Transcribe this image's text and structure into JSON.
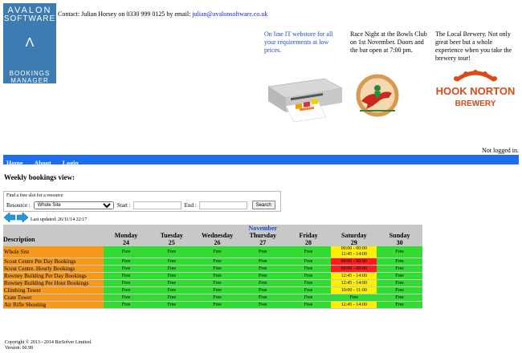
{
  "logo": {
    "line1": "AVALON",
    "line2": "SOFTWARE",
    "line3": "BOOKINGS",
    "line4": "MANAGER",
    "mark": "Λ"
  },
  "contact": {
    "prefix": "Contact: Julian Horsey on 0330 999 0125 by email: ",
    "email": "julian@avalonsoftware.co.uk"
  },
  "ads": {
    "ad1": "On line IT webstore for all your requirements at low prices.",
    "ad2": "Race Night at the Bowls Club on 1st November. Doors and the bar open at 7:00 pm.",
    "ad3": "The Local Brewery. Not only great beer but a whole experience when you take the brewery tour!",
    "brewery_line1": "HOOK NORTON",
    "brewery_line2": "BREWERY"
  },
  "status": {
    "login": "Not logged in."
  },
  "nav": {
    "home": "Home",
    "about": "About",
    "login": "Login"
  },
  "page": {
    "heading": "Weekly bookings view:",
    "updated": "Last updated: 26/11/14 22:17"
  },
  "search": {
    "title": "Find a free slot for a resource",
    "resource_label": "Resource :",
    "resource_value": "Whole Site",
    "start_label": "Start :",
    "end_label": "End :",
    "button": "Search"
  },
  "grid": {
    "month": "November",
    "desc_header": "Description",
    "days": [
      {
        "name": "Monday",
        "num": "24"
      },
      {
        "name": "Tuesday",
        "num": "25"
      },
      {
        "name": "Wednesday",
        "num": "26"
      },
      {
        "name": "Thursday",
        "num": "27"
      },
      {
        "name": "Friday",
        "num": "28"
      },
      {
        "name": "Saturday",
        "num": "29"
      },
      {
        "name": "Sunday",
        "num": "30"
      }
    ],
    "rows": [
      {
        "name": "Whole Site",
        "cells": [
          "Free",
          "Free",
          "Free",
          "Free",
          "Free",
          "00:00 - 00:00\n12:45 - 14:00",
          "Free"
        ],
        "sat": "yellow"
      },
      {
        "name": "Scout Centre Per Day Bookings",
        "cells": [
          "Free",
          "Free",
          "Free",
          "Free",
          "Free",
          "00:00 - 00:00",
          "Free"
        ],
        "sat": "red"
      },
      {
        "name": "Scout Centre. Hourly Bookings",
        "cells": [
          "Free",
          "Free",
          "Free",
          "Free",
          "Free",
          "00:00 - 00:00",
          "Free"
        ],
        "sat": "red"
      },
      {
        "name": "Rowney Building Per Day Bookings",
        "cells": [
          "Free",
          "Free",
          "Free",
          "Free",
          "Free",
          "12:45 - 14:00",
          "Free"
        ],
        "sat": "yellow"
      },
      {
        "name": "Rowney Building Per Hour Bookings",
        "cells": [
          "Free",
          "Free",
          "Free",
          "Free",
          "Free",
          "12:45 - 14:00",
          "Free"
        ],
        "sat": "yellow"
      },
      {
        "name": "Climbing Tower",
        "cells": [
          "Free",
          "Free",
          "Free",
          "Free",
          "Free",
          "10:00 - 11:00",
          "Free"
        ],
        "sat": "yellow"
      },
      {
        "name": "Crate Tower",
        "cells": [
          "Free",
          "Free",
          "Free",
          "Free",
          "Free",
          "Free",
          "Free"
        ],
        "sat": "free"
      },
      {
        "name": "Air Rifle Shooting",
        "cells": [
          "Free",
          "Free",
          "Free",
          "Free",
          "Free",
          "12:45 - 14:00",
          "Free"
        ],
        "sat": "yellow"
      }
    ]
  },
  "footer": {
    "copyright": "Copyright © 2013 - 2014 BizSolver Limited.",
    "version": "Version: 00.98"
  },
  "colors": {
    "nav": "#1e6ff0",
    "desc": "#f79a1c",
    "free": "#32dc32",
    "partial": "#fff000",
    "booked": "#ff1c1c"
  }
}
